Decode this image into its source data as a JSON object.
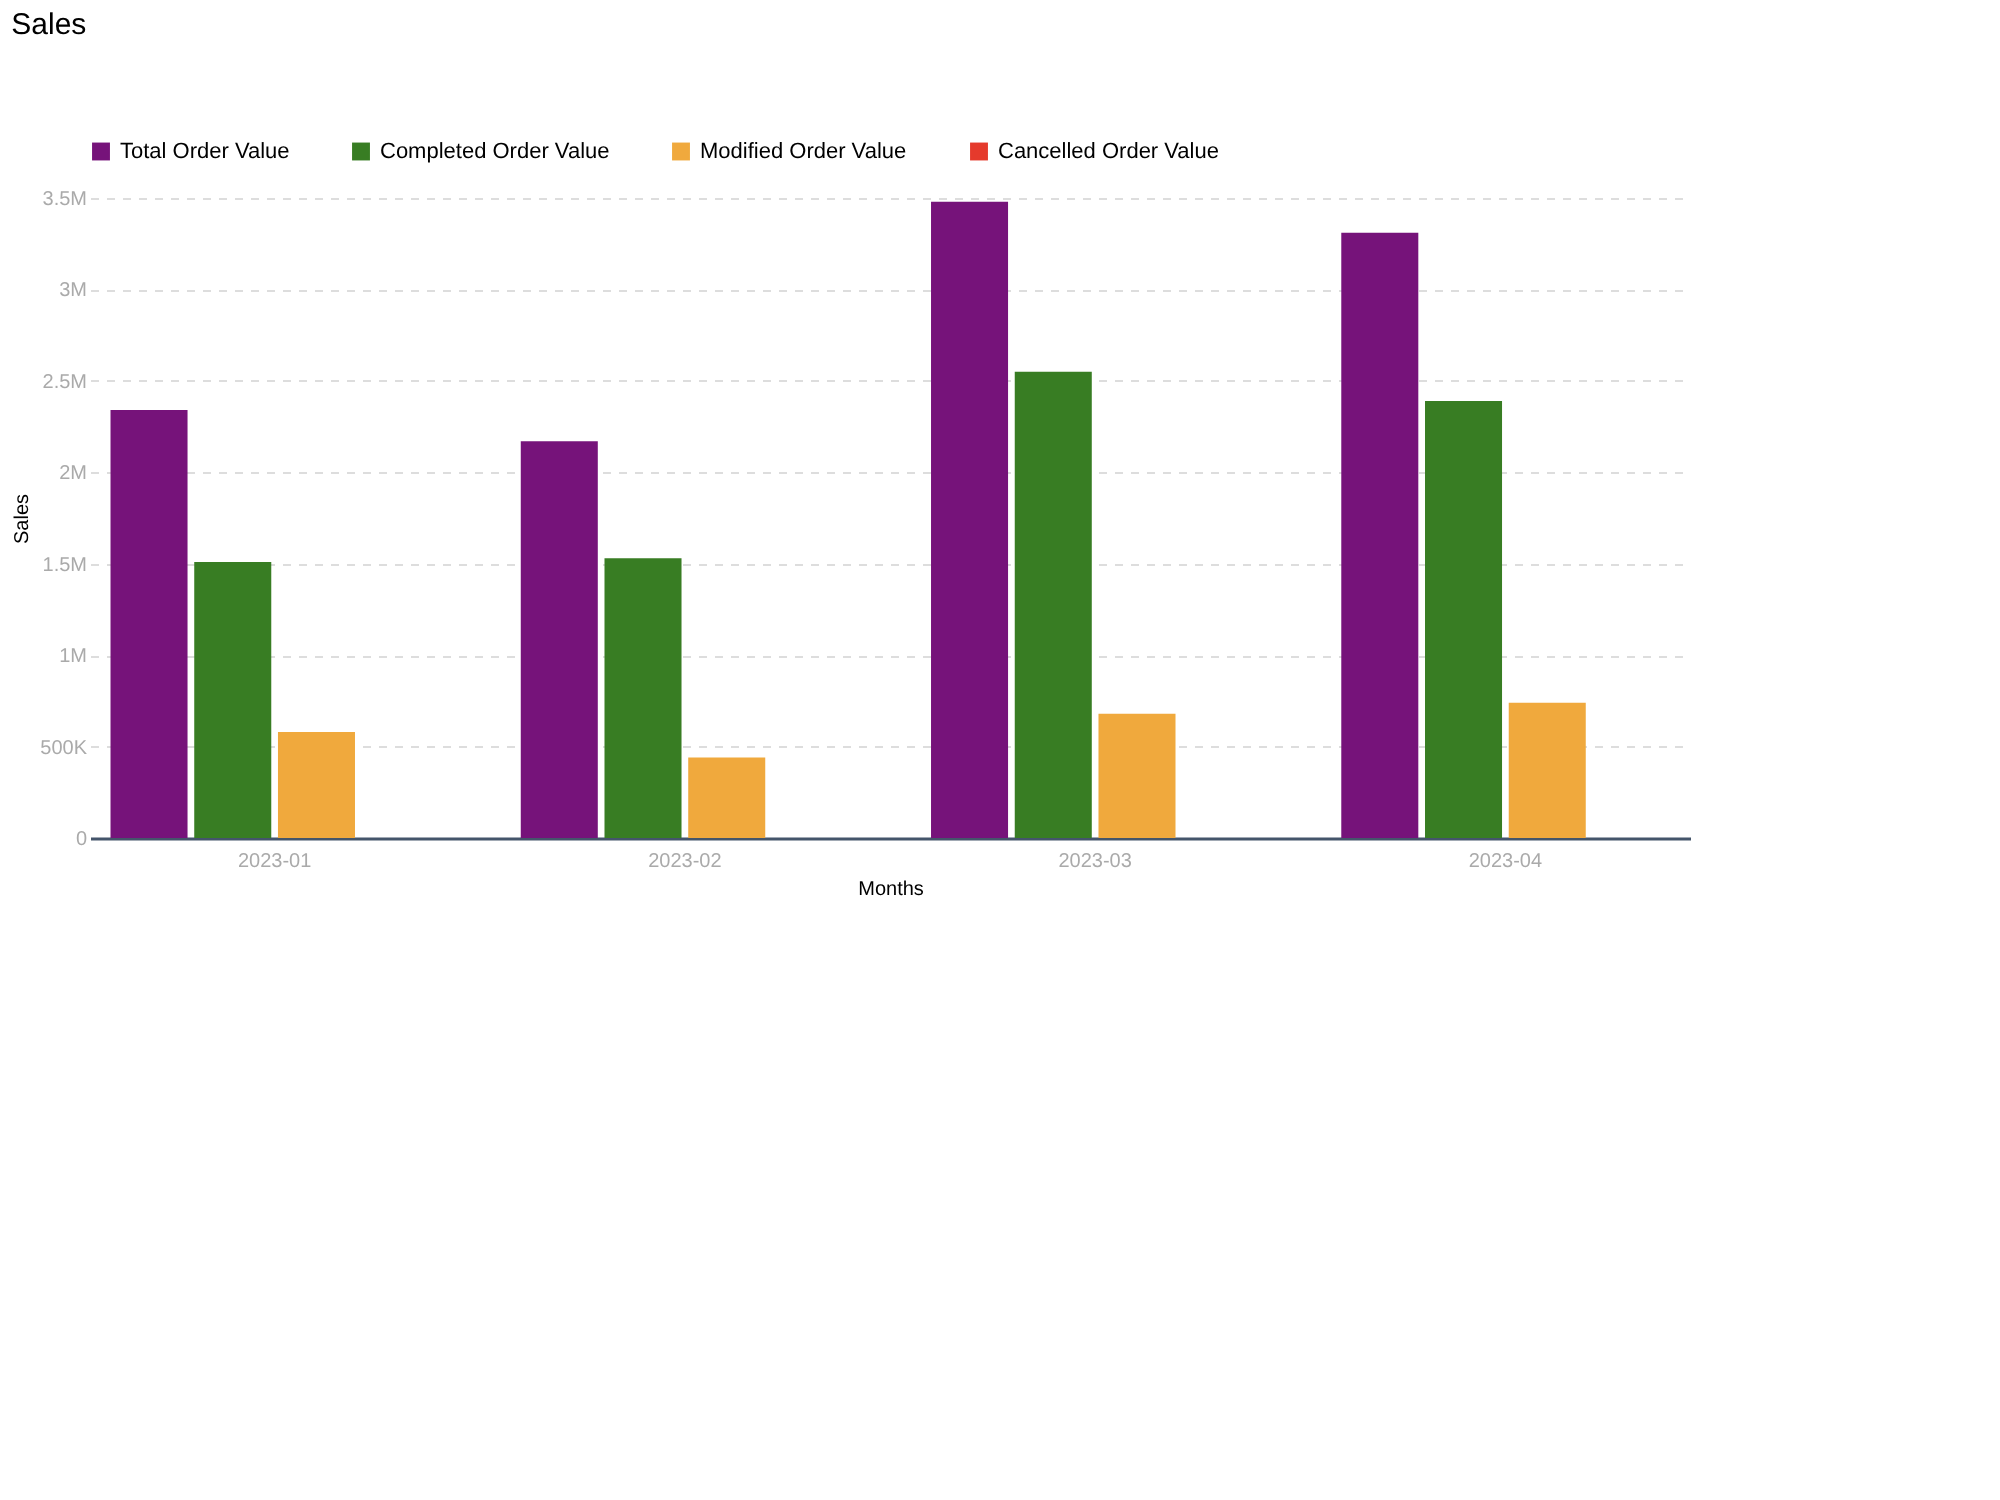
{
  "chart_data": {
    "type": "bar",
    "title": "Sales",
    "xlabel": "Months",
    "ylabel": "Sales",
    "categories": [
      "2023-01",
      "2023-02",
      "2023-03",
      "2023-04"
    ],
    "series": [
      {
        "name": "Total Order Value",
        "color": "#76137a",
        "values": [
          2340000,
          2170000,
          3480000,
          3310000
        ]
      },
      {
        "name": "Completed Order Value",
        "color": "#387d23",
        "values": [
          1510000,
          1530000,
          2550000,
          2390000
        ]
      },
      {
        "name": "Modified Order Value",
        "color": "#f0a93d",
        "values": [
          580000,
          440000,
          680000,
          740000
        ]
      },
      {
        "name": "Cancelled Order Value",
        "color": "#e53a2c",
        "values": [
          0,
          0,
          0,
          0
        ]
      }
    ],
    "ylim": [
      0,
      3500000
    ],
    "yticks": [
      0,
      {
        "value": 500000,
        "label": "500K"
      },
      {
        "value": 1000000,
        "label": "1M"
      },
      {
        "value": 1500000,
        "label": "1.5M"
      },
      {
        "value": 2000000,
        "label": "2M"
      },
      {
        "value": 2500000,
        "label": "2.5M"
      },
      {
        "value": 3000000,
        "label": "3M"
      },
      {
        "value": 3500000,
        "label": "3.5M"
      }
    ],
    "grid": "y",
    "legend": "top"
  }
}
